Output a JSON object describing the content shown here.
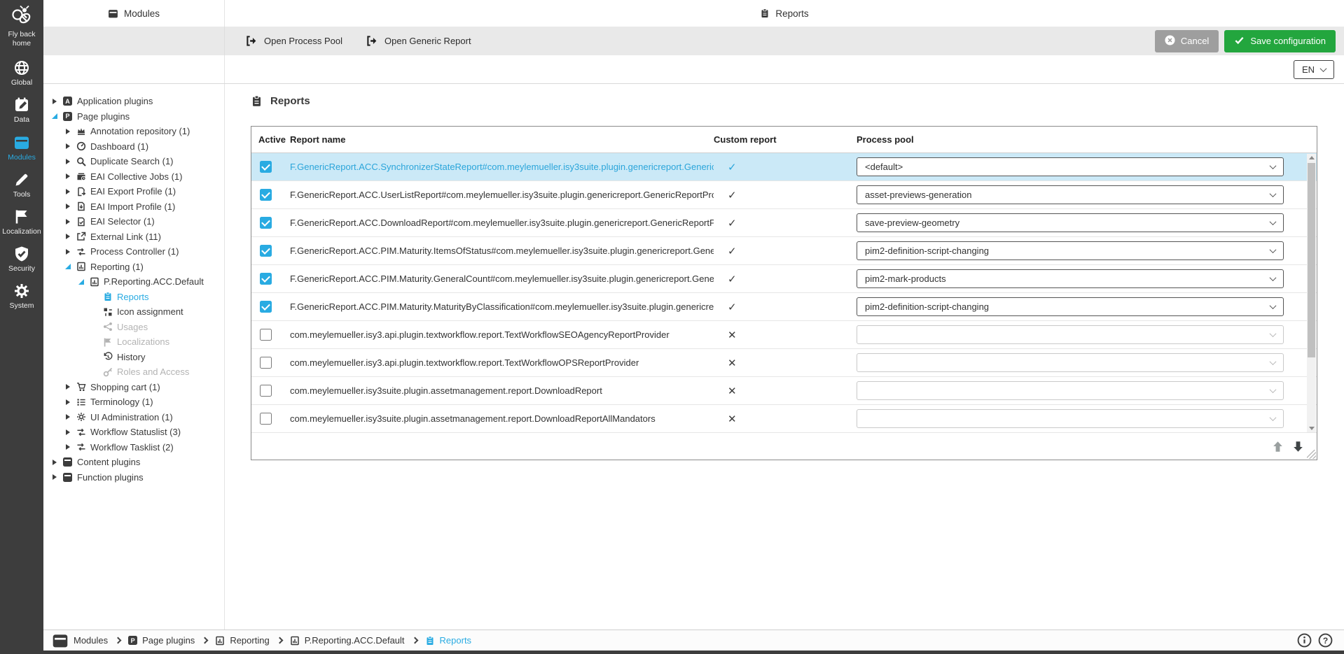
{
  "colors": {
    "accent": "#29abe2",
    "save_green": "#23a63e",
    "cancel_gray": "#9e9e9e",
    "selected_row": "#cbe9f7",
    "sidebar_bg": "#3d3d3d"
  },
  "sidebar": {
    "logo": {
      "icon": "bee-logo",
      "label": "Fly back home"
    },
    "items": [
      {
        "icon": "globe",
        "label": "Global",
        "active": false
      },
      {
        "icon": "data-calendar",
        "label": "Data",
        "active": false
      },
      {
        "icon": "modules-side",
        "label": "Modules",
        "active": true
      },
      {
        "icon": "tools-pencil",
        "label": "Tools",
        "active": false
      },
      {
        "icon": "localization-flag",
        "label": "Localization",
        "active": false
      },
      {
        "icon": "security-shield",
        "label": "Security",
        "active": false
      },
      {
        "icon": "system-gear",
        "label": "System",
        "active": false
      }
    ]
  },
  "tabs": {
    "panel": "Modules",
    "main": "Reports"
  },
  "toolbar": {
    "buttons": [
      {
        "label": "Open Process Pool"
      },
      {
        "label": "Open Generic Report"
      }
    ],
    "cancel": "Cancel",
    "save": "Save configuration"
  },
  "language": {
    "selected": "EN"
  },
  "tree": {
    "items": [
      {
        "label": "Application plugins",
        "level": 0,
        "state": "collapsed",
        "icon": "box-a"
      },
      {
        "label": "Page plugins",
        "level": 0,
        "state": "expanded",
        "icon": "box-p"
      },
      {
        "label": "Annotation repository (1)",
        "level": 1,
        "state": "collapsed",
        "icon": "crown"
      },
      {
        "label": "Dashboard (1)",
        "level": 1,
        "state": "collapsed",
        "icon": "gauge"
      },
      {
        "label": "Duplicate Search (1)",
        "level": 1,
        "state": "collapsed",
        "icon": "magnifier"
      },
      {
        "label": "EAI Collective Jobs (1)",
        "level": 1,
        "state": "collapsed",
        "icon": "stackbox"
      },
      {
        "label": "EAI Export Profile (1)",
        "level": 1,
        "state": "collapsed",
        "icon": "export-doc"
      },
      {
        "label": "EAI Import Profile (1)",
        "level": 1,
        "state": "collapsed",
        "icon": "import-doc"
      },
      {
        "label": "EAI Selector (1)",
        "level": 1,
        "state": "collapsed",
        "icon": "selector-doc"
      },
      {
        "label": "External Link (11)",
        "level": 1,
        "state": "collapsed",
        "icon": "external-link"
      },
      {
        "label": "Process Controller (1)",
        "level": 1,
        "state": "collapsed",
        "icon": "transfer"
      },
      {
        "label": "Reporting (1)",
        "level": 1,
        "state": "expanded",
        "icon": "report-chart"
      },
      {
        "label": "P.Reporting.ACC.Default",
        "level": 2,
        "state": "expanded",
        "icon": "report-chart"
      },
      {
        "label": "Reports",
        "level": 3,
        "state": "leaf",
        "icon": "clipboard",
        "selected": true
      },
      {
        "label": "Icon assignment",
        "level": 3,
        "state": "leaf",
        "icon": "grid-arrows"
      },
      {
        "label": "Usages",
        "level": 3,
        "state": "leaf",
        "icon": "share",
        "disabled": true
      },
      {
        "label": "Localizations",
        "level": 3,
        "state": "leaf",
        "icon": "flag-small",
        "disabled": true
      },
      {
        "label": "History",
        "level": 3,
        "state": "leaf",
        "icon": "history"
      },
      {
        "label": "Roles and Access",
        "level": 3,
        "state": "leaf",
        "icon": "key",
        "disabled": true
      },
      {
        "label": "Shopping cart (1)",
        "level": 1,
        "state": "collapsed",
        "icon": "cart"
      },
      {
        "label": "Terminology (1)",
        "level": 1,
        "state": "collapsed",
        "icon": "list"
      },
      {
        "label": "UI Administration (1)",
        "level": 1,
        "state": "collapsed",
        "icon": "gear-small"
      },
      {
        "label": "Workflow Statuslist (3)",
        "level": 1,
        "state": "collapsed",
        "icon": "transfer"
      },
      {
        "label": "Workflow Tasklist (2)",
        "level": 1,
        "state": "collapsed",
        "icon": "transfer"
      },
      {
        "label": "Content plugins",
        "level": 0,
        "state": "collapsed",
        "icon": "box"
      },
      {
        "label": "Function plugins",
        "level": 0,
        "state": "collapsed",
        "icon": "box"
      }
    ]
  },
  "content": {
    "title": "Reports"
  },
  "table": {
    "columns": [
      "Active",
      "Report name",
      "Custom report",
      "Process pool"
    ],
    "rows": [
      {
        "active": true,
        "selected": true,
        "name": "F.GenericReport.ACC.SynchronizerStateReport#com.meylemueller.isy3suite.plugin.genericreport.GenericR...",
        "custom": true,
        "pool": "<default>"
      },
      {
        "active": true,
        "name": "F.GenericReport.ACC.UserListReport#com.meylemueller.isy3suite.plugin.genericreport.GenericReportProvi...",
        "custom": true,
        "pool": "asset-previews-generation"
      },
      {
        "active": true,
        "name": "F.GenericReport.ACC.DownloadReport#com.meylemueller.isy3suite.plugin.genericreport.GenericReportPro...",
        "custom": true,
        "pool": "save-preview-geometry"
      },
      {
        "active": true,
        "name": "F.GenericReport.ACC.PIM.Maturity.ItemsOfStatus#com.meylemueller.isy3suite.plugin.genericreport.Generic...",
        "custom": true,
        "pool": "pim2-definition-script-changing"
      },
      {
        "active": true,
        "name": "F.GenericReport.ACC.PIM.Maturity.GeneralCount#com.meylemueller.isy3suite.plugin.genericreport.Generic...",
        "custom": true,
        "pool": "pim2-mark-products"
      },
      {
        "active": true,
        "name": "F.GenericReport.ACC.PIM.Maturity.MaturityByClassification#com.meylemueller.isy3suite.plugin.genericrepor...",
        "custom": true,
        "pool": "pim2-definition-script-changing"
      },
      {
        "active": false,
        "name": "com.meylemueller.isy3.api.plugin.textworkflow.report.TextWorkflowSEOAgencyReportProvider",
        "custom": false,
        "pool": ""
      },
      {
        "active": false,
        "name": "com.meylemueller.isy3.api.plugin.textworkflow.report.TextWorkflowOPSReportProvider",
        "custom": false,
        "pool": ""
      },
      {
        "active": false,
        "name": "com.meylemueller.isy3suite.plugin.assetmanagement.report.DownloadReport",
        "custom": false,
        "pool": ""
      },
      {
        "active": false,
        "name": "com.meylemueller.isy3suite.plugin.assetmanagement.report.DownloadReportAllMandators",
        "custom": false,
        "pool": ""
      }
    ]
  },
  "breadcrumb": {
    "items": [
      {
        "label": "Modules",
        "icon": "modules-big"
      },
      {
        "label": "Page plugins",
        "icon": "box-p"
      },
      {
        "label": "Reporting",
        "icon": "report-chart"
      },
      {
        "label": "P.Reporting.ACC.Default",
        "icon": "report-chart"
      },
      {
        "label": "Reports",
        "icon": "clipboard",
        "active": true
      }
    ]
  }
}
